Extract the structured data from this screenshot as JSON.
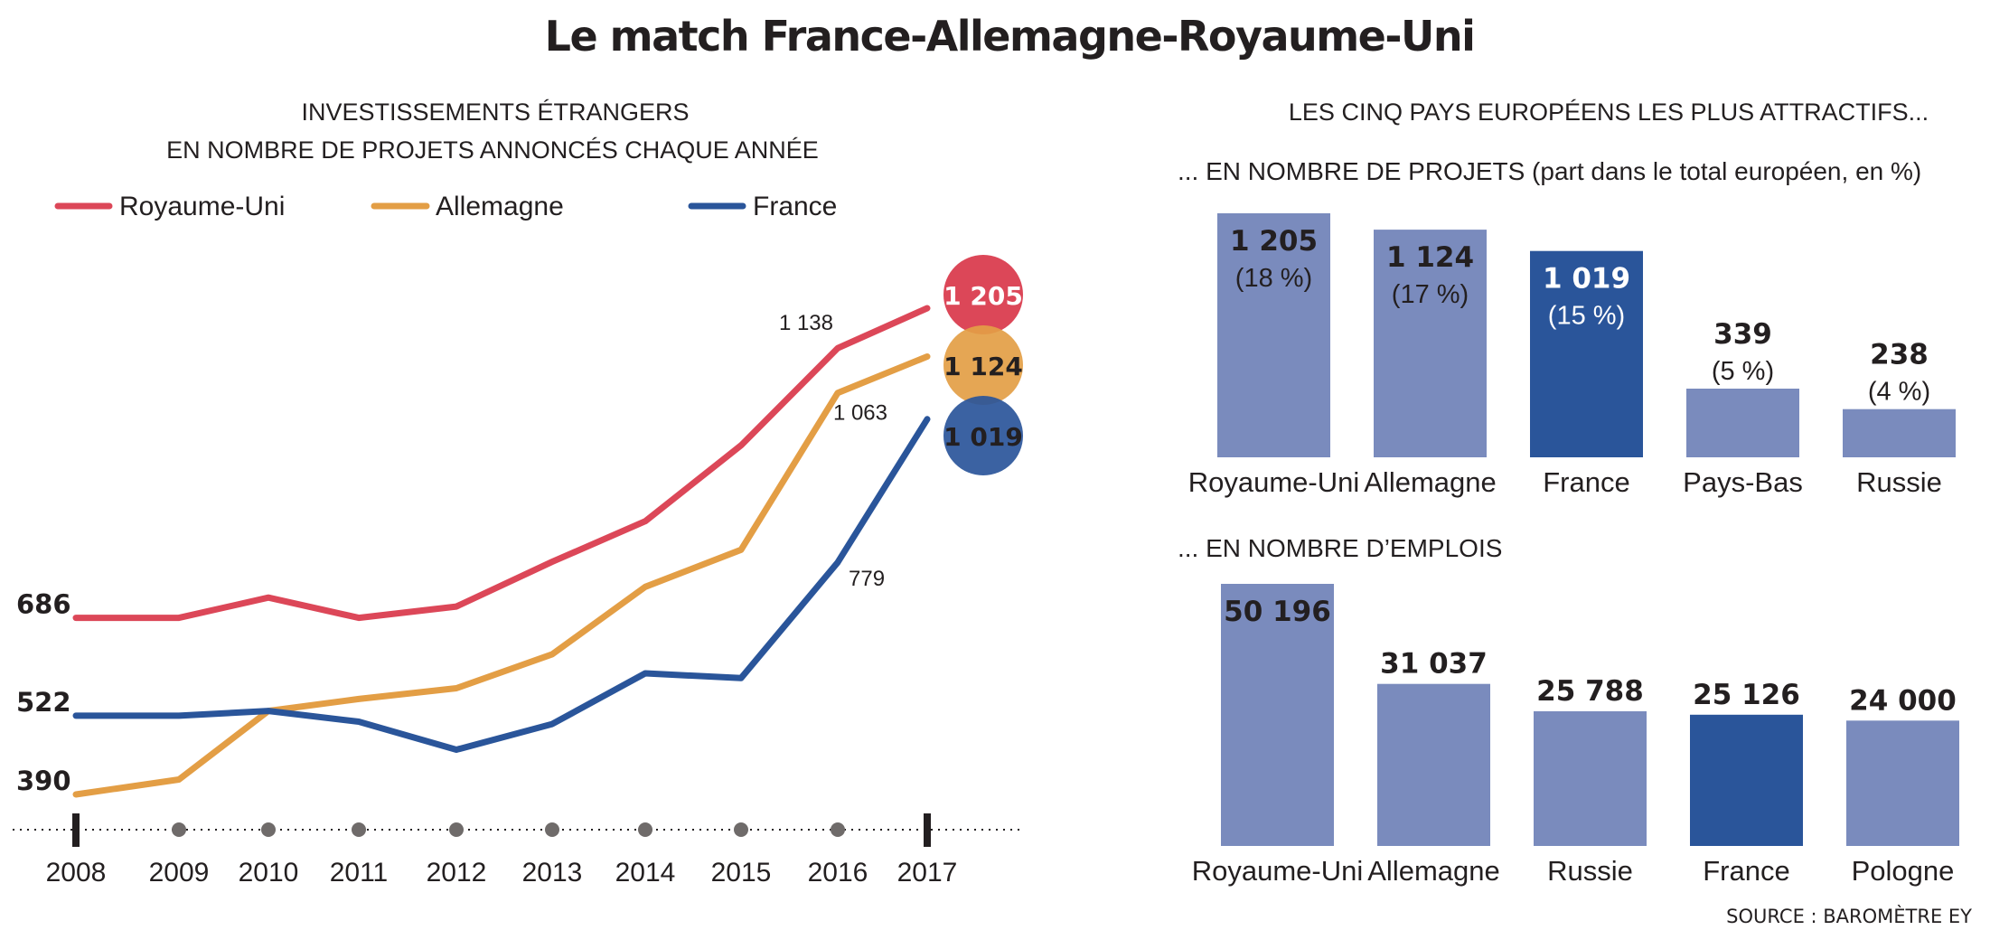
{
  "title": "Le match France-Allemagne-Royaume-Uni",
  "source": "SOURCE : BAROMÈTRE EY",
  "colors": {
    "royaume_uni": "#dc4758",
    "allemagne": "#e39e45",
    "france": "#2a559a",
    "bar": "#7a8bbd",
    "bar_highlight": "#2a559a",
    "text": "#231f20"
  },
  "chart_data": [
    {
      "type": "line",
      "title_lines": [
        "INVESTISSEMENTS ÉTRANGERS",
        "EN NOMBRE DE PROJETS ANNONCÉS CHAQUE ANNÉE"
      ],
      "x": [
        "2008",
        "2009",
        "2010",
        "2011",
        "2012",
        "2013",
        "2014",
        "2015",
        "2016",
        "2017"
      ],
      "ylim": [
        350,
        1260
      ],
      "legend_position": "top",
      "series": [
        {
          "name": "Royaume-Uni",
          "color": "#dc4758",
          "values": [
            686,
            686,
            720,
            686,
            705,
            780,
            848,
            975,
            1138,
            1205
          ]
        },
        {
          "name": "Allemagne",
          "color": "#e39e45",
          "values": [
            390,
            415,
            530,
            550,
            568,
            625,
            738,
            800,
            1063,
            1124
          ]
        },
        {
          "name": "France",
          "color": "#2a559a",
          "values": [
            522,
            522,
            530,
            512,
            465,
            508,
            593,
            585,
            779,
            1019
          ]
        }
      ],
      "axis_value_labels": [
        "686",
        "522",
        "390"
      ],
      "point_labels": [
        {
          "series": "Royaume-Uni",
          "year": "2016",
          "text": "1 138"
        },
        {
          "series": "Allemagne",
          "year": "2016",
          "text": "1 063"
        },
        {
          "series": "France",
          "year": "2016",
          "text": "779"
        }
      ],
      "end_badges": [
        {
          "series": "Royaume-Uni",
          "text": "1 205"
        },
        {
          "series": "Allemagne",
          "text": "1 124"
        },
        {
          "series": "France",
          "text": "1 019"
        }
      ]
    },
    {
      "type": "bar",
      "heading": "LES CINQ PAYS EUROPÉENS LES PLUS ATTRACTIFS...",
      "title": "... EN NOMBRE DE PROJETS (part dans le total européen, en %)",
      "categories": [
        "Royaume-Uni",
        "Allemagne",
        "France",
        "Pays-Bas",
        "Russie"
      ],
      "values": [
        1205,
        1124,
        1019,
        339,
        238
      ],
      "value_labels": [
        "1 205",
        "1 124",
        "1 019",
        "339",
        "238"
      ],
      "share_labels": [
        "(18 %)",
        "(17 %)",
        "(15 %)",
        "(5 %)",
        "(4 %)"
      ],
      "highlight": "France"
    },
    {
      "type": "bar",
      "title": "... EN NOMBRE D’EMPLOIS",
      "categories": [
        "Royaume-Uni",
        "Allemagne",
        "Russie",
        "France",
        "Pologne"
      ],
      "values": [
        50196,
        31037,
        25788,
        25126,
        24000
      ],
      "value_labels": [
        "50 196",
        "31 037",
        "25 788",
        "25 126",
        "24 000"
      ],
      "highlight": "France"
    }
  ]
}
